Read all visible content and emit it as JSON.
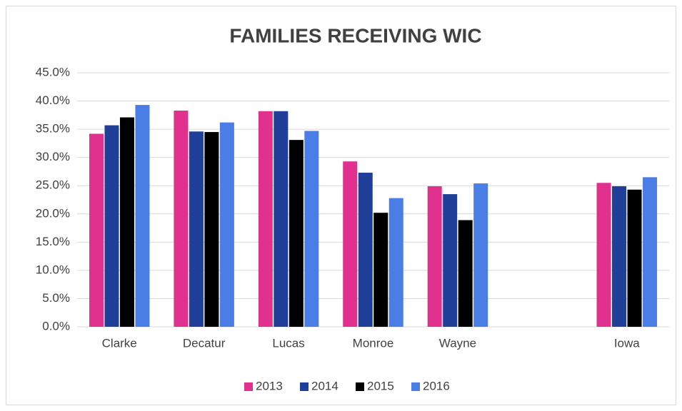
{
  "chart_data": {
    "type": "bar",
    "title": "FAMILIES RECEIVING WIC",
    "categories": [
      "Clarke",
      "Decatur",
      "Lucas",
      "Monroe",
      "Wayne",
      null,
      "Iowa"
    ],
    "series": [
      {
        "name": "2013",
        "color": "#e0318f",
        "values": [
          34.2,
          38.3,
          38.2,
          29.3,
          24.9,
          null,
          25.5
        ]
      },
      {
        "name": "2014",
        "color": "#1f3f99",
        "values": [
          35.7,
          34.6,
          38.2,
          27.3,
          23.5,
          null,
          24.9
        ]
      },
      {
        "name": "2015",
        "color": "#000000",
        "values": [
          37.1,
          34.5,
          33.1,
          20.2,
          18.9,
          null,
          24.3
        ]
      },
      {
        "name": "2016",
        "color": "#4a7ee6",
        "values": [
          39.3,
          36.2,
          34.7,
          22.8,
          25.4,
          null,
          26.5
        ]
      }
    ],
    "ylim": [
      0,
      45
    ],
    "yticks": [
      {
        "value": 0,
        "label": "0.0%"
      },
      {
        "value": 5,
        "label": "5.0%"
      },
      {
        "value": 10,
        "label": "10.0%"
      },
      {
        "value": 15,
        "label": "15.0%"
      },
      {
        "value": 20,
        "label": "20.0%"
      },
      {
        "value": 25,
        "label": "25.0%"
      },
      {
        "value": 30,
        "label": "30.0%"
      },
      {
        "value": 35,
        "label": "35.0%"
      },
      {
        "value": 40,
        "label": "40.0%"
      },
      {
        "value": 45,
        "label": "45.0%"
      }
    ],
    "grid": true,
    "legend": "bottom"
  }
}
